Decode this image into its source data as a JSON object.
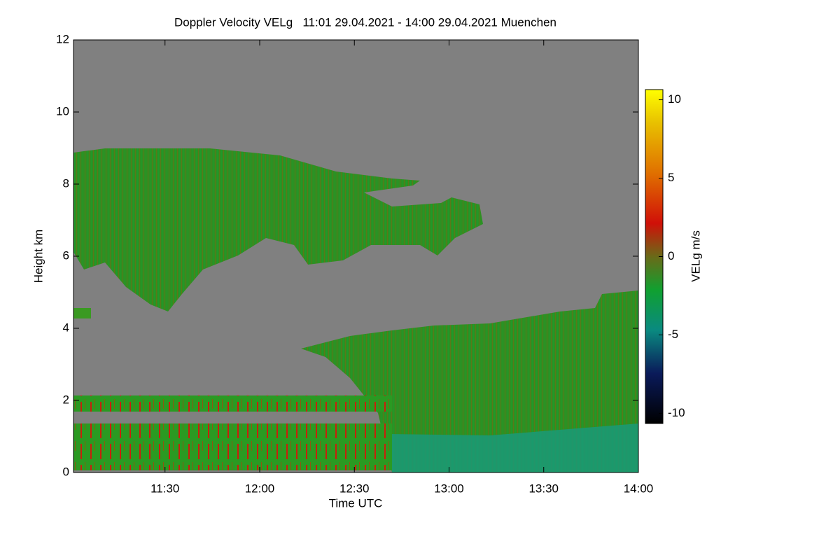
{
  "chart_data": {
    "type": "heatmap",
    "title": "Doppler Velocity VELg   11:01 29.04.2021 - 14:00 29.04.2021 Muenchen",
    "x_label": "Time UTC",
    "y_label": "Height km",
    "xlim": [
      661,
      840
    ],
    "xticks": [
      {
        "value": 690,
        "label": "11:30"
      },
      {
        "value": 720,
        "label": "12:00"
      },
      {
        "value": 750,
        "label": "12:30"
      },
      {
        "value": 780,
        "label": "13:00"
      },
      {
        "value": 810,
        "label": "13:30"
      },
      {
        "value": 840,
        "label": "14:00"
      }
    ],
    "ylim": [
      0,
      12
    ],
    "yticks": [
      0,
      2,
      4,
      6,
      8,
      10,
      12
    ],
    "colorbar": {
      "label": "VELg m/s",
      "lim": [
        -10.65,
        10.65
      ],
      "ticks": [
        -10,
        -5,
        0,
        5,
        10
      ]
    }
  }
}
